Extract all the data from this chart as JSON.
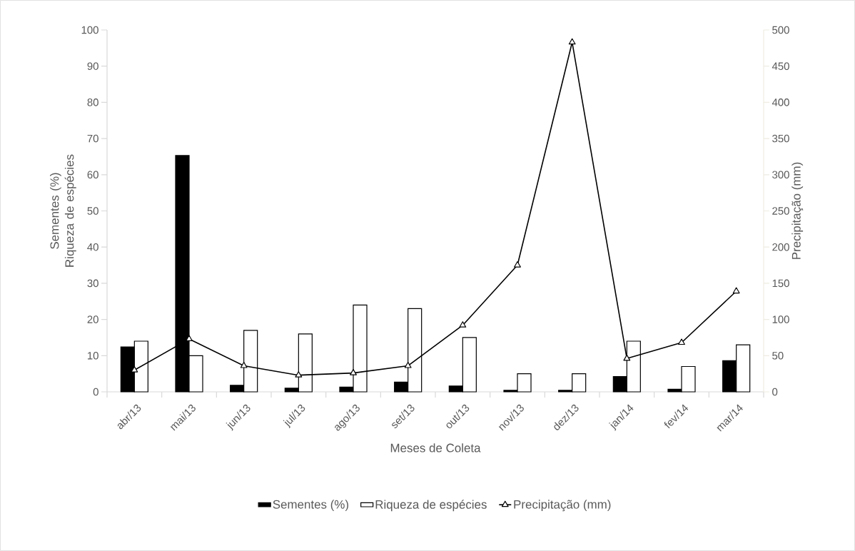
{
  "chart_data": {
    "type": "bar",
    "xlabel": "Meses de Coleta",
    "ylabel": "Sementes  (%) Riqueza de espécies",
    "y2label": "Precipitação (mm)",
    "categories": [
      "abr/13",
      "mai/13",
      "jun/13",
      "jul/13",
      "ago/13",
      "set/13",
      "out/13",
      "nov/13",
      "dez/13",
      "jan/14",
      "fev/14",
      "mar/14"
    ],
    "series": [
      {
        "name": "Sementes (%)",
        "color": "#000000",
        "values": [
          12.4,
          65.3,
          1.8,
          1.0,
          1.3,
          2.7,
          1.6,
          0.4,
          0.4,
          4.2,
          0.7,
          8.6
        ]
      },
      {
        "name": "Riqueza de espécies",
        "color": "#ffffff",
        "values": [
          14,
          10,
          17,
          16,
          24,
          23,
          15,
          5,
          5,
          14,
          7,
          13
        ]
      },
      {
        "name": "Precipitação (mm)",
        "type": "line",
        "axis": "y2",
        "color": "#000000",
        "marker": "triangle",
        "line_style": "solid",
        "values": [
          30,
          73,
          36,
          23,
          26,
          36,
          92,
          175,
          483,
          46,
          68,
          139
        ]
      }
    ],
    "ylim": [
      0,
      100
    ],
    "yticks": [
      0,
      10,
      20,
      30,
      40,
      50,
      60,
      70,
      80,
      90,
      100
    ],
    "y2lim": [
      0,
      500
    ],
    "y2ticks": [
      0,
      50,
      100,
      150,
      200,
      250,
      300,
      350,
      400,
      450,
      500
    ],
    "legend": "bottom"
  }
}
